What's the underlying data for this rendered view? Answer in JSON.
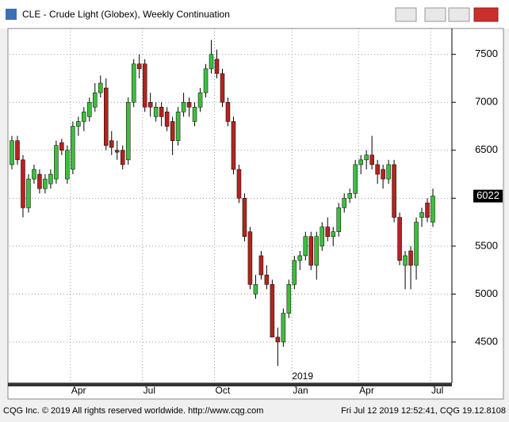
{
  "window": {
    "title": "CLE - Crude Light (Globex), Weekly Continuation"
  },
  "footer": {
    "left": "CQG Inc. © 2019 All rights reserved worldwide. http://www.cqg.com",
    "right": "Fri Jul 12 2019 12:52:41, CQG 19.12.8108"
  },
  "chart_data": {
    "type": "candlestick",
    "categories": [
      null,
      null,
      null,
      null,
      null,
      null,
      null,
      null,
      null,
      null,
      null,
      "Apr",
      null,
      null,
      null,
      null,
      null,
      null,
      null,
      null,
      null,
      null,
      null,
      null,
      "Jul",
      null,
      null,
      null,
      null,
      null,
      null,
      null,
      null,
      null,
      null,
      null,
      null,
      "Oct",
      null,
      null,
      null,
      null,
      null,
      null,
      null,
      null,
      null,
      null,
      null,
      null,
      null,
      "Jan",
      null,
      null,
      null,
      null,
      null,
      null,
      null,
      null,
      null,
      null,
      null,
      "Apr",
      null,
      null,
      null,
      null,
      null,
      null,
      null,
      null,
      null,
      null,
      null,
      null,
      "Jul"
    ],
    "annotation": "2019",
    "open": [
      6350,
      6600,
      6400,
      5900,
      6200,
      6250,
      6100,
      6150,
      6200,
      6580,
      6200,
      6300,
      6750,
      6800,
      6850,
      6950,
      7100,
      7150,
      6600,
      6500,
      6500,
      6400,
      7000,
      7400,
      7400,
      7000,
      6850,
      6950,
      6900,
      6800,
      6600,
      6900,
      7000,
      6800,
      6950,
      7100,
      7350,
      7450,
      7300,
      7000,
      6800,
      6300,
      6000,
      5650,
      5000,
      5400,
      5200,
      5100,
      4550,
      4500,
      4800,
      5100,
      5350,
      5400,
      5600,
      5300,
      5500,
      5700,
      5600,
      5650,
      5900,
      6000,
      6050,
      6350,
      6400,
      6450,
      6350,
      6300,
      6200,
      6350,
      5800,
      5300,
      5450,
      5300,
      5800,
      5950,
      5750
    ],
    "high": [
      6650,
      6650,
      6450,
      6250,
      6350,
      6300,
      6250,
      6300,
      6600,
      6620,
      6550,
      6800,
      6850,
      6950,
      7050,
      7200,
      7280,
      7250,
      6700,
      6600,
      6550,
      7050,
      7450,
      7500,
      7450,
      7100,
      7000,
      7000,
      6950,
      6850,
      6950,
      7100,
      7050,
      7000,
      7150,
      7400,
      7650,
      7550,
      7350,
      7050,
      6850,
      6350,
      6050,
      5700,
      5200,
      5450,
      5300,
      5150,
      4650,
      4850,
      5150,
      5400,
      5450,
      5650,
      5650,
      5650,
      5750,
      5800,
      5700,
      5950,
      6050,
      6100,
      6400,
      6450,
      6500,
      6650,
      6400,
      6350,
      6400,
      6400,
      5850,
      5450,
      5500,
      5800,
      5900,
      6000,
      6100
    ],
    "low": [
      6300,
      6350,
      5800,
      5850,
      6150,
      6050,
      6050,
      6100,
      6150,
      6450,
      6150,
      6250,
      6650,
      6700,
      6800,
      6900,
      7050,
      6500,
      6450,
      6400,
      6300,
      6350,
      6950,
      7250,
      6900,
      6850,
      6800,
      6750,
      6700,
      6450,
      6550,
      6850,
      6850,
      6750,
      6900,
      7050,
      7300,
      7250,
      6950,
      6750,
      6250,
      5950,
      5550,
      5050,
      4950,
      5150,
      5050,
      4550,
      4250,
      4450,
      4750,
      5050,
      5250,
      5350,
      5250,
      5150,
      5450,
      5550,
      5500,
      5600,
      5850,
      5950,
      6000,
      6250,
      6300,
      6300,
      6150,
      6100,
      6150,
      5750,
      5300,
      5050,
      5050,
      5150,
      5700,
      5750,
      5700
    ],
    "close": [
      6600,
      6400,
      5900,
      6200,
      6300,
      6100,
      6200,
      6250,
      6550,
      6500,
      6500,
      6750,
      6800,
      6900,
      7000,
      7100,
      7200,
      6550,
      6530,
      6480,
      6350,
      7000,
      7400,
      7350,
      6950,
      6950,
      6950,
      6850,
      6750,
      6600,
      6900,
      7000,
      6950,
      6950,
      7100,
      7350,
      7500,
      7300,
      7000,
      6800,
      6300,
      6000,
      5600,
      5100,
      5100,
      5200,
      5100,
      4550,
      4500,
      4800,
      5100,
      5350,
      5400,
      5600,
      5300,
      5600,
      5700,
      5600,
      5650,
      5900,
      6000,
      6050,
      6350,
      6400,
      6450,
      6350,
      6250,
      6200,
      6350,
      5800,
      5350,
      5400,
      5300,
      5750,
      5850,
      5800,
      6022
    ],
    "up_color": "#3cbf3c",
    "down_color": "#b3241f",
    "ylim": [
      4070,
      7770
    ],
    "yticks": [
      4500,
      5000,
      5500,
      6000,
      6500,
      7000,
      7500
    ],
    "grid": true
  }
}
